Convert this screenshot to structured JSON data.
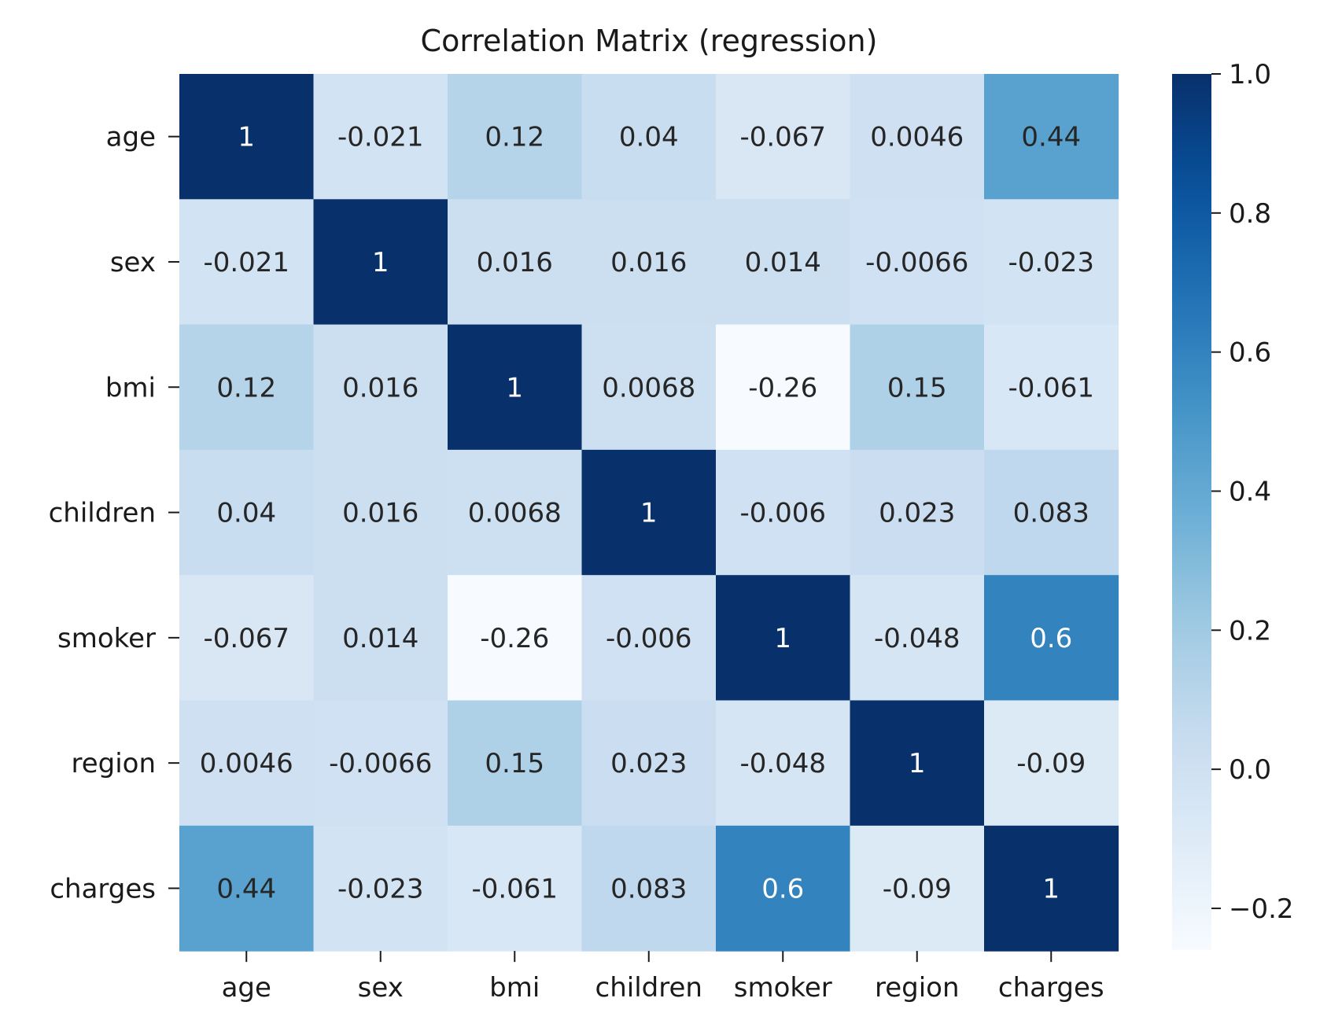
{
  "chart_data": {
    "type": "heatmap",
    "title": "Correlation Matrix (regression)",
    "xlabel": "",
    "ylabel": "",
    "rows": [
      "age",
      "sex",
      "bmi",
      "children",
      "smoker",
      "region",
      "charges"
    ],
    "columns": [
      "age",
      "sex",
      "bmi",
      "children",
      "smoker",
      "region",
      "charges"
    ],
    "values": [
      [
        1,
        -0.021,
        0.12,
        0.04,
        -0.067,
        0.0046,
        0.44
      ],
      [
        -0.021,
        1,
        0.016,
        0.016,
        0.014,
        -0.0066,
        -0.023
      ],
      [
        0.12,
        0.016,
        1,
        0.0068,
        -0.26,
        0.15,
        -0.061
      ],
      [
        0.04,
        0.016,
        0.0068,
        1,
        -0.006,
        0.023,
        0.083
      ],
      [
        -0.067,
        0.014,
        -0.26,
        -0.006,
        1,
        -0.048,
        0.6
      ],
      [
        0.0046,
        -0.0066,
        0.15,
        0.023,
        -0.048,
        1,
        -0.09
      ],
      [
        0.44,
        -0.023,
        -0.061,
        0.083,
        0.6,
        -0.09,
        1
      ]
    ],
    "annotations": [
      [
        "1",
        "-0.021",
        "0.12",
        "0.04",
        "-0.067",
        "0.0046",
        "0.44"
      ],
      [
        "-0.021",
        "1",
        "0.016",
        "0.016",
        "0.014",
        "-0.0066",
        "-0.023"
      ],
      [
        "0.12",
        "0.016",
        "1",
        "0.0068",
        "-0.26",
        "0.15",
        "-0.061"
      ],
      [
        "0.04",
        "0.016",
        "0.0068",
        "1",
        "-0.006",
        "0.023",
        "0.083"
      ],
      [
        "-0.067",
        "0.014",
        "-0.26",
        "-0.006",
        "1",
        "-0.048",
        "0.6"
      ],
      [
        "0.0046",
        "-0.0066",
        "0.15",
        "0.023",
        "-0.048",
        "1",
        "-0.09"
      ],
      [
        "0.44",
        "-0.023",
        "-0.061",
        "0.083",
        "0.6",
        "-0.09",
        "1"
      ]
    ],
    "colormap": "Blues",
    "vmin": -0.26,
    "vmax": 1.0,
    "colorbar": {
      "ticks": [
        1.0,
        0.8,
        0.6,
        0.4,
        0.2,
        0.0,
        -0.2
      ],
      "tick_labels": [
        "1.0",
        "0.8",
        "0.6",
        "0.4",
        "0.2",
        "0.0",
        "−0.2"
      ],
      "placement": "right"
    },
    "grid": false,
    "legend": "none",
    "text_colors": {
      "dark": "#262626",
      "light": "#ffffff"
    }
  }
}
